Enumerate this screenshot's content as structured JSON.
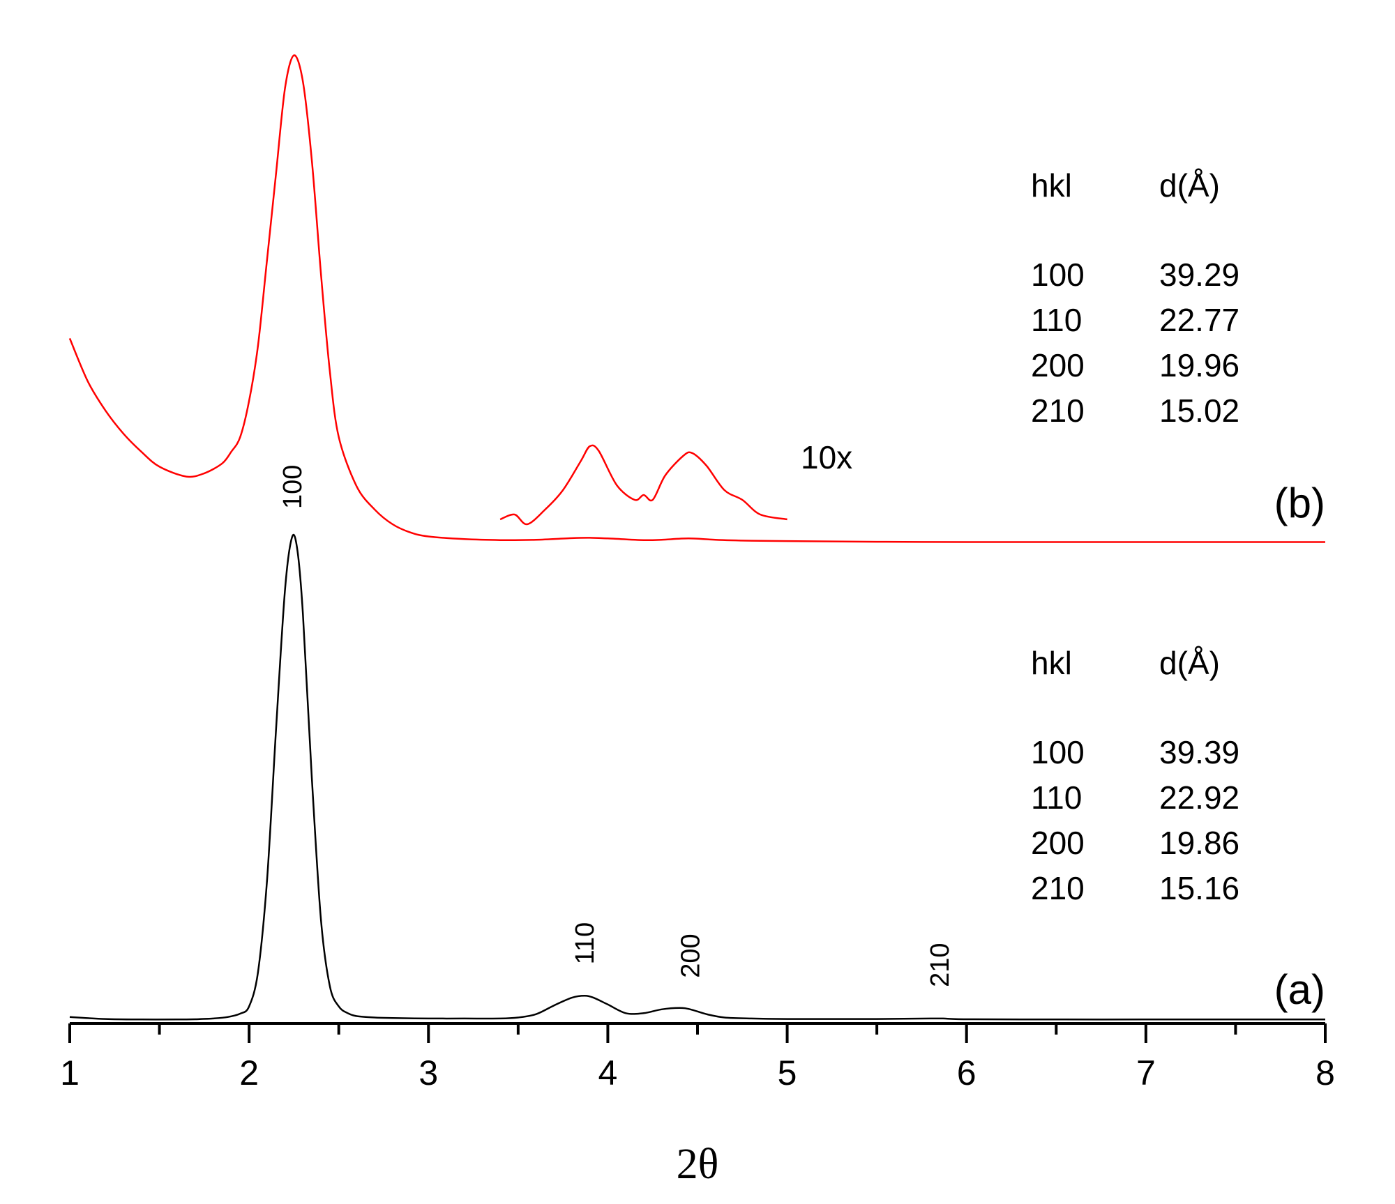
{
  "chart_data": {
    "type": "line",
    "xlabel": "2θ",
    "ylabel": "",
    "xlim": [
      1,
      8
    ],
    "xticks": [
      1,
      2,
      3,
      4,
      5,
      6,
      7,
      8
    ],
    "yaxis_shown": false,
    "grid": false,
    "series": [
      {
        "name": "(a)",
        "color": "#000000",
        "x": [
          1.0,
          1.2,
          1.4,
          1.6,
          1.7,
          1.8,
          1.88,
          1.95,
          2.0,
          2.05,
          2.1,
          2.15,
          2.2,
          2.24,
          2.27,
          2.3,
          2.35,
          2.4,
          2.45,
          2.5,
          2.55,
          2.6,
          2.7,
          2.8,
          3.0,
          3.2,
          3.4,
          3.5,
          3.6,
          3.7,
          3.8,
          3.87,
          3.92,
          4.0,
          4.1,
          4.2,
          4.3,
          4.4,
          4.46,
          4.55,
          4.65,
          4.8,
          5.0,
          5.5,
          5.8,
          5.87,
          6.0,
          6.5,
          7.0,
          7.5,
          8.0
        ],
        "y": [
          6,
          2,
          1,
          1,
          1.5,
          3,
          6,
          13,
          28,
          100,
          290,
          600,
          890,
          1000,
          970,
          840,
          500,
          210,
          70,
          28,
          14,
          8,
          5,
          4,
          3,
          3,
          3,
          5,
          12,
          30,
          46,
          50,
          46,
          32,
          14,
          14,
          22,
          25,
          22,
          12,
          5,
          3,
          2,
          2,
          3,
          3,
          1.5,
          1,
          1,
          1,
          1
        ]
      },
      {
        "name": "(b)",
        "color": "#ff0000",
        "x": [
          1.0,
          1.1,
          1.2,
          1.3,
          1.4,
          1.5,
          1.65,
          1.75,
          1.85,
          1.9,
          1.95,
          2.0,
          2.05,
          2.1,
          2.15,
          2.2,
          2.25,
          2.3,
          2.35,
          2.4,
          2.45,
          2.5,
          2.6,
          2.7,
          2.8,
          2.9,
          3.0,
          3.2,
          3.4,
          3.6,
          3.8,
          3.9,
          4.0,
          4.2,
          4.3,
          4.45,
          4.6,
          4.8,
          5.0,
          5.5,
          6.0,
          6.5,
          7.0,
          7.5,
          8.0
        ],
        "y": [
          620,
          490,
          400,
          330,
          275,
          230,
          200,
          210,
          240,
          275,
          320,
          430,
          600,
          860,
          1120,
          1380,
          1480,
          1400,
          1160,
          820,
          520,
          320,
          170,
          100,
          55,
          30,
          18,
          10,
          7,
          8,
          13,
          14,
          12,
          7,
          8,
          12,
          8,
          5,
          4,
          2,
          1,
          1,
          1,
          1,
          1
        ]
      },
      {
        "name": "10x",
        "color": "#ff0000",
        "x": [
          3.4,
          3.48,
          3.55,
          3.65,
          3.75,
          3.85,
          3.9,
          3.95,
          4.05,
          4.15,
          4.2,
          4.25,
          4.32,
          4.42,
          4.47,
          4.55,
          4.65,
          4.75,
          4.85,
          5.0
        ],
        "y": [
          250,
          255,
          245,
          260,
          280,
          310,
          325,
          320,
          285,
          270,
          275,
          270,
          295,
          315,
          318,
          305,
          280,
          270,
          255,
          250
        ]
      }
    ],
    "annotations": [
      {
        "text": "100",
        "x": 2.24,
        "series": "(a)"
      },
      {
        "text": "110",
        "x": 3.87,
        "series": "(a)"
      },
      {
        "text": "200",
        "x": 4.46,
        "series": "(a)"
      },
      {
        "text": "210",
        "x": 5.85,
        "series": "(a)"
      }
    ],
    "curve_labels": {
      "a": "(a)",
      "b": "(b)"
    },
    "magnification_label": "10x",
    "tables": [
      {
        "for": "(b)",
        "headers": [
          "hkl",
          "d(Å)"
        ],
        "rows": [
          [
            "100",
            "39.29"
          ],
          [
            "110",
            "22.77"
          ],
          [
            "200",
            "19.96"
          ],
          [
            "210",
            "15.02"
          ]
        ]
      },
      {
        "for": "(a)",
        "headers": [
          "hkl",
          "d(Å)"
        ],
        "rows": [
          [
            "100",
            "39.39"
          ],
          [
            "110",
            "22.92"
          ],
          [
            "200",
            "19.86"
          ],
          [
            "210",
            "15.16"
          ]
        ]
      }
    ]
  }
}
